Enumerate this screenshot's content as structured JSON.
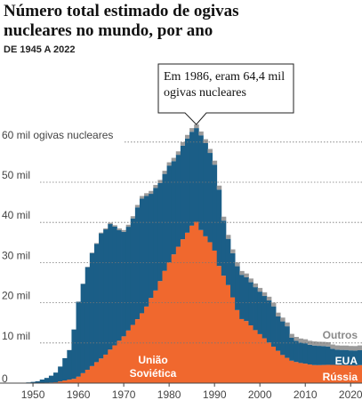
{
  "chart_data": {
    "type": "stacked-step-area",
    "title": "Número total estimado de ogivas nucleares no mundo, por ano",
    "subtitle": "DE 1945 A 2022",
    "annotation": "Em 1986, eram 64,4 mil ogivas nucleares",
    "x": [
      1945,
      1946,
      1947,
      1948,
      1949,
      1950,
      1951,
      1952,
      1953,
      1954,
      1955,
      1956,
      1957,
      1958,
      1959,
      1960,
      1961,
      1962,
      1963,
      1964,
      1965,
      1966,
      1967,
      1968,
      1969,
      1970,
      1971,
      1972,
      1973,
      1974,
      1975,
      1976,
      1977,
      1978,
      1979,
      1980,
      1981,
      1982,
      1983,
      1984,
      1985,
      1986,
      1987,
      1988,
      1989,
      1990,
      1991,
      1992,
      1993,
      1994,
      1995,
      1996,
      1997,
      1998,
      1999,
      2000,
      2001,
      2002,
      2003,
      2004,
      2005,
      2006,
      2007,
      2008,
      2009,
      2010,
      2011,
      2012,
      2013,
      2014,
      2015,
      2016,
      2017,
      2018,
      2019,
      2020,
      2021,
      2022
    ],
    "xlim": [
      1944.5,
      2022.5
    ],
    "xticks": [
      1950,
      1960,
      1970,
      1980,
      1990,
      2000,
      2010,
      2020
    ],
    "ylim": [
      0,
      66000
    ],
    "yticks": [
      0,
      {
        "value": 10000,
        "label": "10 mil"
      },
      {
        "value": 20000,
        "label": "20 mil"
      },
      {
        "value": 30000,
        "label": "30 mil"
      },
      {
        "value": 40000,
        "label": "40 mil"
      },
      {
        "value": 50000,
        "label": "50 mil"
      },
      {
        "value": 60000,
        "label": "60 mil ogivas nucleares"
      }
    ],
    "grid": true,
    "series": [
      {
        "name": "União Soviética",
        "end_label": "Rússia",
        "color": "#f0682e",
        "values": [
          0,
          0,
          0,
          0,
          1,
          5,
          25,
          50,
          120,
          150,
          200,
          426,
          660,
          869,
          1060,
          1605,
          2471,
          3322,
          4238,
          5221,
          6129,
          7089,
          8339,
          9399,
          10538,
          11643,
          13092,
          14478,
          15915,
          17385,
          19055,
          21205,
          23044,
          25393,
          27935,
          30062,
          32049,
          33952,
          35804,
          37431,
          39197,
          40159,
          38107,
          36538,
          35078,
          32980,
          29154,
          26734,
          24403,
          21339,
          18179,
          15942,
          15442,
          14368,
          13188,
          12188,
          11152,
          10114,
          9076,
          8038,
          7000,
          6284,
          5575,
          5250,
          5000,
          4850,
          4635,
          4480,
          4470,
          4510,
          4550,
          4540,
          4500,
          4480,
          4450,
          4400,
          4375,
          4477
        ]
      },
      {
        "name": "EUA",
        "color": "#1b5e87",
        "values": [
          2,
          9,
          13,
          50,
          170,
          299,
          438,
          841,
          1169,
          1703,
          2422,
          3692,
          5543,
          7345,
          12298,
          18638,
          22229,
          25540,
          28133,
          29463,
          31139,
          31175,
          31255,
          29561,
          27552,
          26008,
          25830,
          26516,
          27835,
          28537,
          27519,
          25914,
          25542,
          24418,
          24138,
          24104,
          23208,
          22886,
          23305,
          23459,
          23368,
          23317,
          23575,
          23205,
          22217,
          21392,
          19008,
          13708,
          11511,
          10979,
          10904,
          11011,
          10903,
          10732,
          10685,
          10577,
          10526,
          10457,
          10027,
          8570,
          8360,
          7853,
          5709,
          5273,
          5113,
          5066,
          4897,
          4881,
          4804,
          4717,
          4571,
          4018,
          3822,
          3785,
          3805,
          3750,
          3708,
          3708
        ]
      },
      {
        "name": "Outros",
        "color": "#9b9b9b",
        "values": [
          0,
          0,
          0,
          0,
          0,
          0,
          0,
          0,
          1,
          5,
          10,
          15,
          20,
          22,
          25,
          30,
          50,
          80,
          120,
          160,
          200,
          250,
          300,
          350,
          400,
          450,
          500,
          550,
          600,
          650,
          700,
          720,
          740,
          760,
          780,
          800,
          820,
          850,
          870,
          890,
          910,
          924,
          950,
          970,
          990,
          1000,
          1000,
          990,
          980,
          970,
          960,
          950,
          940,
          930,
          930,
          930,
          930,
          930,
          930,
          940,
          950,
          960,
          970,
          980,
          990,
          1000,
          1010,
          1020,
          1030,
          1040,
          1050,
          1060,
          1070,
          1080,
          1090,
          1100,
          1150,
          1200
        ]
      }
    ]
  }
}
